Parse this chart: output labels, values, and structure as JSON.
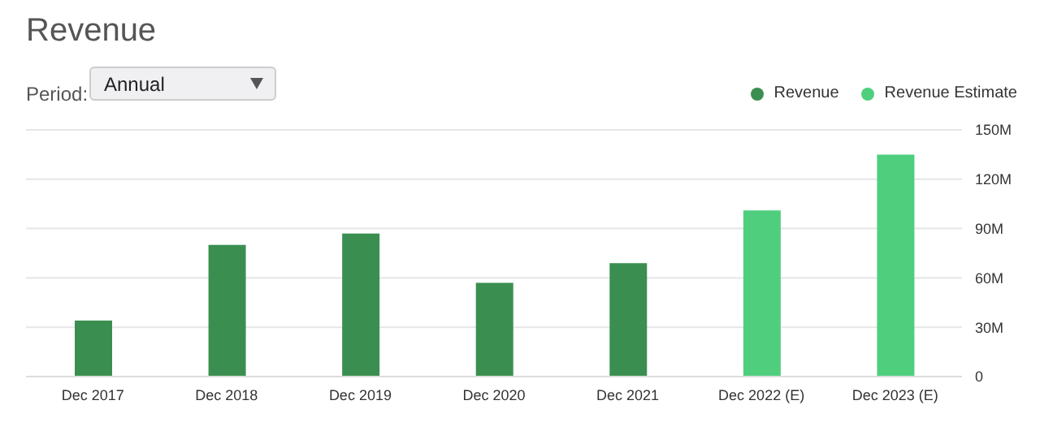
{
  "chart_data": {
    "type": "bar",
    "title": "Revenue",
    "annotations": [
      "Period:",
      "Annual"
    ],
    "categories": [
      "Dec 2017",
      "Dec 2018",
      "Dec 2019",
      "Dec 2020",
      "Dec 2021",
      "Dec 2022 (E)",
      "Dec 2023 (E)"
    ],
    "stacked": true,
    "series": [
      {
        "name": "Revenue",
        "color": "#3a8f50",
        "values": [
          34,
          80,
          87,
          57,
          69,
          null,
          null
        ]
      },
      {
        "name": "Revenue Estimate",
        "color": "#4fcf7e",
        "values": [
          null,
          null,
          null,
          null,
          null,
          101,
          135
        ]
      }
    ],
    "ylim": [
      0,
      150
    ],
    "yticks": [
      {
        "value": 0,
        "label": "0"
      },
      {
        "value": 30,
        "label": "30M"
      },
      {
        "value": 60,
        "label": "60M"
      },
      {
        "value": 90,
        "label": "90M"
      },
      {
        "value": 120,
        "label": "120M"
      },
      {
        "value": 150,
        "label": "150M"
      }
    ],
    "grid": "y",
    "legend": "top right"
  }
}
